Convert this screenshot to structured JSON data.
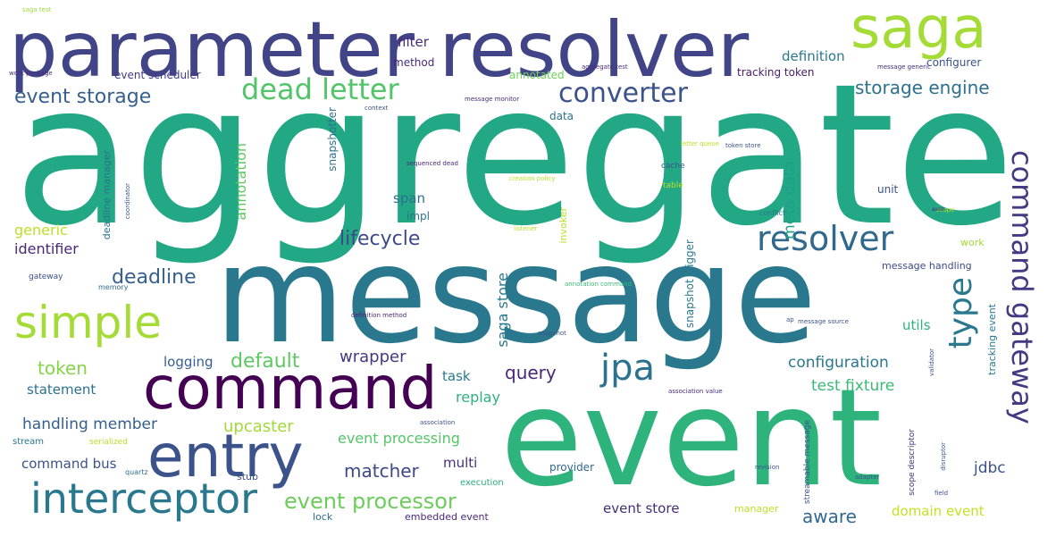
{
  "word_cloud": {
    "words": [
      {
        "text": "aggregate",
        "color": "#22a884"
      },
      {
        "text": "message",
        "color": "#2a788e"
      },
      {
        "text": "event",
        "color": "#2eb37c"
      },
      {
        "text": "parameter resolver",
        "color": "#414487"
      },
      {
        "text": "saga",
        "color": "#a5db36"
      },
      {
        "text": "command",
        "color": "#440154"
      },
      {
        "text": "entry",
        "color": "#3b528b"
      },
      {
        "text": "simple",
        "color": "#a5db36"
      },
      {
        "text": "interceptor",
        "color": "#2a788e"
      },
      {
        "text": "resolver",
        "color": "#31688e"
      },
      {
        "text": "dead letter",
        "color": "#52c569"
      },
      {
        "text": "converter",
        "color": "#3b528b"
      },
      {
        "text": "command gateway",
        "color": "#443a83"
      },
      {
        "text": "jpa",
        "color": "#2c728e"
      },
      {
        "text": "type",
        "color": "#2a788e"
      },
      {
        "text": "event storage",
        "color": "#355f8d"
      },
      {
        "text": "storage engine",
        "color": "#2d708e"
      },
      {
        "text": "lifecycle",
        "color": "#3e4989"
      },
      {
        "text": "deadline",
        "color": "#355f8d"
      },
      {
        "text": "event processor",
        "color": "#6ccd5a"
      },
      {
        "text": "default",
        "color": "#5ec962"
      },
      {
        "text": "token",
        "color": "#86d549"
      },
      {
        "text": "query",
        "color": "#482878"
      },
      {
        "text": "matcher",
        "color": "#3f4788"
      },
      {
        "text": "upcaster",
        "color": "#a0da39"
      },
      {
        "text": "aware",
        "color": "#31688e"
      },
      {
        "text": "configuration",
        "color": "#2a788e"
      },
      {
        "text": "event processing",
        "color": "#54c568"
      },
      {
        "text": "handling member",
        "color": "#355f8d"
      },
      {
        "text": "test fixture",
        "color": "#3aba76"
      },
      {
        "text": "identifier",
        "color": "#482878"
      },
      {
        "text": "generic",
        "color": "#bddf26"
      },
      {
        "text": "wrapper",
        "color": "#453781"
      },
      {
        "text": "replay",
        "color": "#2db27d"
      },
      {
        "text": "command bus",
        "color": "#3b528b"
      },
      {
        "text": "event store",
        "color": "#472d7b"
      },
      {
        "text": "domain event",
        "color": "#c8e020"
      },
      {
        "text": "statement",
        "color": "#2c728e"
      },
      {
        "text": "logging",
        "color": "#355f8d"
      },
      {
        "text": "task",
        "color": "#2a788e"
      },
      {
        "text": "multi",
        "color": "#46327e"
      },
      {
        "text": "span",
        "color": "#2d708e"
      },
      {
        "text": "filter",
        "color": "#472d7b"
      },
      {
        "text": "definition",
        "color": "#2a788e"
      },
      {
        "text": "saga store",
        "color": "#2a788e"
      },
      {
        "text": "meta data",
        "color": "#1f9e89"
      },
      {
        "text": "annotation",
        "color": "#5ec962"
      },
      {
        "text": "utils",
        "color": "#2db27d"
      },
      {
        "text": "jdbc",
        "color": "#3b528b"
      },
      {
        "text": "tracking token",
        "color": "#481a6c"
      },
      {
        "text": "event scheduler",
        "color": "#443983"
      },
      {
        "text": "method",
        "color": "#482878"
      },
      {
        "text": "annotated",
        "color": "#6ece58"
      },
      {
        "text": "configurer",
        "color": "#3b528b"
      },
      {
        "text": "impl",
        "color": "#2c728e"
      },
      {
        "text": "unit",
        "color": "#3b528b"
      },
      {
        "text": "data",
        "color": "#2c728e"
      },
      {
        "text": "stub",
        "color": "#3b528b"
      },
      {
        "text": "provider",
        "color": "#31688e"
      },
      {
        "text": "message handling",
        "color": "#3e4989"
      },
      {
        "text": "embedded event",
        "color": "#482878"
      },
      {
        "text": "lock",
        "color": "#2d708e"
      },
      {
        "text": "manager",
        "color": "#bddf26"
      },
      {
        "text": "execution",
        "color": "#29af7f"
      },
      {
        "text": "work",
        "color": "#a0da39"
      },
      {
        "text": "snapshotter",
        "color": "#2c728e"
      },
      {
        "text": "snapshot trigger",
        "color": "#2a788e"
      },
      {
        "text": "invoker",
        "color": "#b8de29"
      },
      {
        "text": "deadline manager",
        "color": "#2c728e"
      },
      {
        "text": "tracking event",
        "color": "#2a788e"
      },
      {
        "text": "streamable message",
        "color": "#3b528b"
      },
      {
        "text": "scope descriptor",
        "color": "#46327e"
      },
      {
        "text": "serialized",
        "color": "#b8de29"
      },
      {
        "text": "stream",
        "color": "#2a788e"
      },
      {
        "text": "quartz",
        "color": "#2c728e"
      },
      {
        "text": "gateway",
        "color": "#3b528b"
      },
      {
        "text": "memory",
        "color": "#31688e"
      },
      {
        "text": "cache",
        "color": "#3b528b"
      },
      {
        "text": "table",
        "color": "#bddf26"
      },
      {
        "text": "conflict",
        "color": "#2a788e"
      },
      {
        "text": "saga test",
        "color": "#a0da39"
      },
      {
        "text": "work package",
        "color": "#472d7b"
      },
      {
        "text": "message monitor",
        "color": "#472d7b"
      },
      {
        "text": "aggregate test",
        "color": "#472d7b"
      },
      {
        "text": "message generic",
        "color": "#482878"
      },
      {
        "text": "sequenced dead",
        "color": "#482878"
      },
      {
        "text": "creation policy",
        "color": "#b8de29"
      },
      {
        "text": "letter queue",
        "color": "#bddf26"
      },
      {
        "text": "token store",
        "color": "#3b528b"
      },
      {
        "text": "annotation command",
        "color": "#3aba76"
      },
      {
        "text": "definition method",
        "color": "#482878"
      },
      {
        "text": "message source",
        "color": "#3b528b"
      },
      {
        "text": "association value",
        "color": "#482878"
      },
      {
        "text": "snapshot",
        "color": "#3b528b"
      },
      {
        "text": "revision",
        "color": "#3b528b"
      },
      {
        "text": "adapter",
        "color": "#3b528b"
      },
      {
        "text": "field",
        "color": "#3b528b"
      },
      {
        "text": "validator",
        "color": "#3b528b"
      },
      {
        "text": "disruptor",
        "color": "#3b528b"
      },
      {
        "text": "listener",
        "color": "#b8de29"
      },
      {
        "text": "context",
        "color": "#3b528b"
      },
      {
        "text": "coordinator",
        "color": "#3b528b"
      },
      {
        "text": "scope",
        "color": "#b8de29"
      },
      {
        "text": "ap",
        "color": "#3b528b"
      },
      {
        "text": "association",
        "color": "#3b528b"
      },
      {
        "text": "axon",
        "color": "#482878"
      }
    ]
  }
}
